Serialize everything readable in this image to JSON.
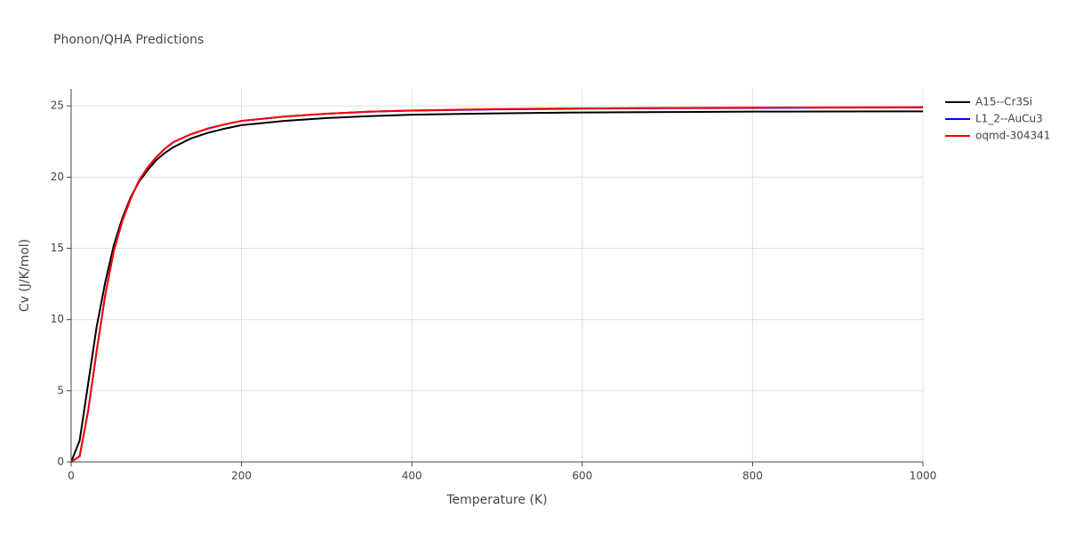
{
  "chart_data": {
    "type": "line",
    "title": "Phonon/QHA Predictions",
    "x_label": "Temperature (K)",
    "y_label": "Cv (J/K/mol)",
    "x": [
      0,
      10,
      20,
      30,
      40,
      50,
      60,
      70,
      80,
      90,
      100,
      110,
      120,
      140,
      160,
      180,
      200,
      250,
      300,
      350,
      400,
      500,
      600,
      700,
      800,
      900,
      1000
    ],
    "series": [
      {
        "name": "A15--Cr3Si",
        "color": "#000000",
        "values": [
          0,
          1.5,
          5.5,
          9.5,
          12.6,
          15.2,
          17.1,
          18.6,
          19.7,
          20.5,
          21.2,
          21.7,
          22.1,
          22.7,
          23.1,
          23.4,
          23.65,
          23.95,
          24.15,
          24.28,
          24.38,
          24.48,
          24.54,
          24.57,
          24.6,
          24.61,
          24.62
        ]
      },
      {
        "name": "L1_2--AuCu3",
        "color": "#0000ff",
        "values": [
          0,
          0.4,
          3.6,
          7.8,
          11.7,
          14.8,
          16.9,
          18.5,
          19.8,
          20.7,
          21.4,
          22.0,
          22.45,
          23.0,
          23.4,
          23.7,
          23.95,
          24.25,
          24.45,
          24.59,
          24.67,
          24.76,
          24.81,
          24.84,
          24.86,
          24.88,
          24.89
        ]
      },
      {
        "name": "oqmd-304341",
        "color": "#ff0000",
        "values": [
          0,
          0.4,
          3.6,
          7.8,
          11.7,
          14.8,
          16.9,
          18.5,
          19.8,
          20.7,
          21.4,
          22.0,
          22.45,
          23.0,
          23.4,
          23.7,
          23.95,
          24.25,
          24.45,
          24.6,
          24.68,
          24.78,
          24.83,
          24.86,
          24.88,
          24.9,
          24.91
        ]
      }
    ],
    "xlim": [
      0,
      1000
    ],
    "xticks": [
      0,
      200,
      400,
      600,
      800,
      1000
    ],
    "ylim": [
      0,
      26.2
    ],
    "yticks": [
      0,
      5,
      10,
      15,
      20,
      25
    ],
    "grid": true
  }
}
